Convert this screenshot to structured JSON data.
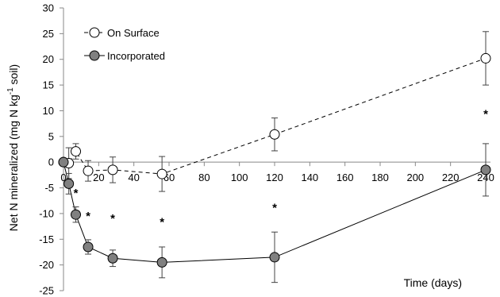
{
  "chart_data": {
    "type": "line",
    "title": "",
    "xlabel": "Time (days)",
    "ylabel_parts": [
      "Net N mineralized (mg N kg",
      "-1",
      " soil)"
    ],
    "xlim": [
      0,
      240
    ],
    "ylim": [
      -25,
      30
    ],
    "x_ticks": [
      0,
      20,
      40,
      60,
      80,
      100,
      120,
      140,
      160,
      180,
      200,
      220,
      240
    ],
    "y_ticks": [
      -25,
      -20,
      -15,
      -10,
      -5,
      0,
      5,
      10,
      15,
      20,
      25,
      30
    ],
    "grid": false,
    "legend_position": "top-left",
    "series": [
      {
        "name": "On Surface",
        "marker": "open-circle",
        "line_style": "dashed",
        "color": "#000000",
        "points": [
          {
            "x": 0,
            "y": 0.0,
            "err": 0.0
          },
          {
            "x": 3,
            "y": -0.2,
            "err": 3.0
          },
          {
            "x": 7,
            "y": 2.1,
            "err": 1.5
          },
          {
            "x": 14,
            "y": -1.7,
            "err": 2.0
          },
          {
            "x": 28,
            "y": -1.5,
            "err": 2.5
          },
          {
            "x": 56,
            "y": -2.3,
            "err": 3.4
          },
          {
            "x": 120,
            "y": 5.4,
            "err": 3.2
          },
          {
            "x": 240,
            "y": 20.2,
            "err": 5.2
          }
        ]
      },
      {
        "name": "Incorporated",
        "marker": "filled-circle",
        "line_style": "solid",
        "color": "#000000",
        "fill": "#808080",
        "points": [
          {
            "x": 0,
            "y": 0.0,
            "err": 0.0
          },
          {
            "x": 3,
            "y": -4.2,
            "err": 2.0
          },
          {
            "x": 7,
            "y": -10.2,
            "err": 1.5
          },
          {
            "x": 14,
            "y": -16.5,
            "err": 1.4
          },
          {
            "x": 28,
            "y": -18.7,
            "err": 1.6
          },
          {
            "x": 56,
            "y": -19.5,
            "err": 3.0
          },
          {
            "x": 120,
            "y": -18.5,
            "err": 4.9
          },
          {
            "x": 240,
            "y": -1.5,
            "err": 5.1
          }
        ]
      }
    ],
    "annotations": [
      {
        "text": "*",
        "x": 7,
        "y": -5.5
      },
      {
        "text": "*",
        "x": 14,
        "y": -10.0
      },
      {
        "text": "*",
        "x": 28,
        "y": -10.5
      },
      {
        "text": "*",
        "x": 56,
        "y": -11.2
      },
      {
        "text": "*",
        "x": 120,
        "y": -8.4
      },
      {
        "text": "*",
        "x": 240,
        "y": 9.8
      }
    ]
  }
}
